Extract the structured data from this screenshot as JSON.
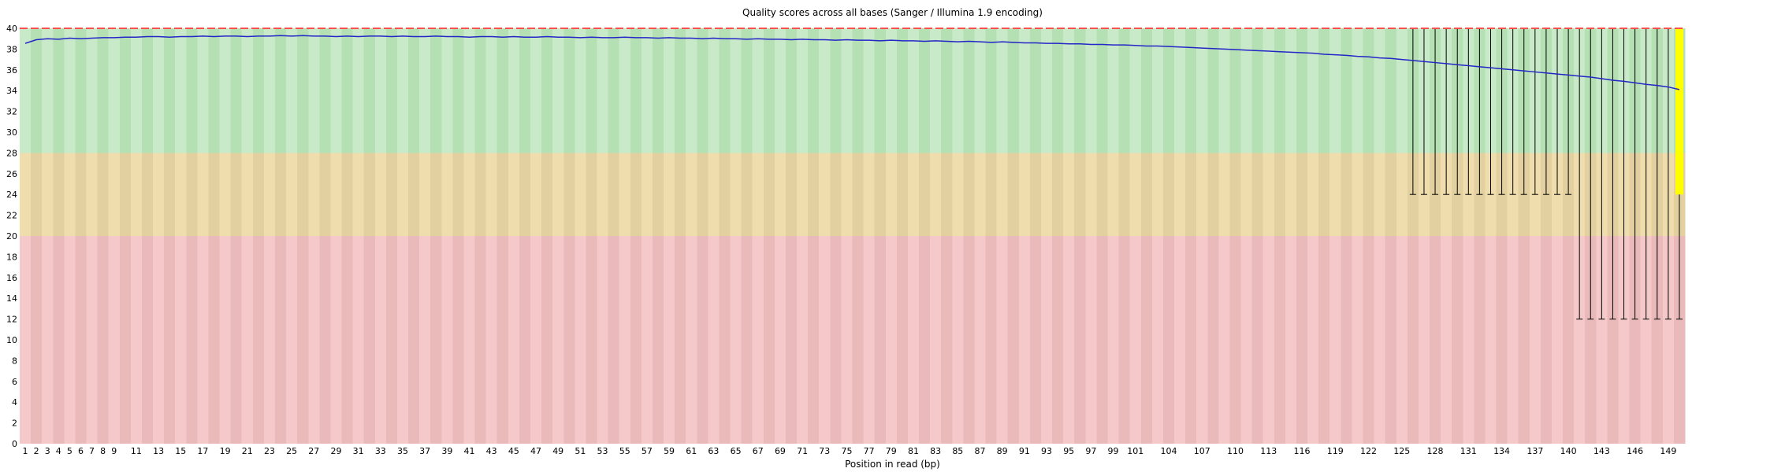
{
  "chart_data": {
    "type": "boxplot-line",
    "title": "Quality scores across all bases (Sanger / Illumina 1.9 encoding)",
    "xlabel": "Position in read (bp)",
    "ylabel": "",
    "ylim": [
      0,
      40
    ],
    "n_positions": 150,
    "y_ticks": [
      0,
      2,
      4,
      6,
      8,
      10,
      12,
      14,
      16,
      18,
      20,
      22,
      24,
      26,
      28,
      30,
      32,
      34,
      36,
      38,
      40
    ],
    "x_tick_labels": [
      "1",
      "2",
      "3",
      "4",
      "5",
      "6",
      "7",
      "8",
      "9",
      "11",
      "13",
      "15",
      "17",
      "19",
      "21",
      "23",
      "25",
      "27",
      "29",
      "31",
      "33",
      "35",
      "37",
      "39",
      "41",
      "43",
      "45",
      "47",
      "49",
      "51",
      "53",
      "55",
      "57",
      "59",
      "61",
      "63",
      "65",
      "67",
      "69",
      "71",
      "73",
      "75",
      "77",
      "79",
      "81",
      "83",
      "85",
      "87",
      "89",
      "91",
      "93",
      "95",
      "97",
      "99",
      "101",
      "104",
      "107",
      "110",
      "113",
      "116",
      "119",
      "122",
      "125",
      "128",
      "131",
      "134",
      "137",
      "140",
      "143",
      "146",
      "149"
    ],
    "bands": [
      {
        "name": "good",
        "from": 28,
        "to": 40,
        "light": "#c8eac8",
        "dark": "#b4e0b4"
      },
      {
        "name": "ok",
        "from": 20,
        "to": 28,
        "light": "#f0ddae",
        "dark": "#e3d0a0"
      },
      {
        "name": "bad",
        "from": 0,
        "to": 20,
        "light": "#f5c9c9",
        "dark": "#eab9b9"
      }
    ],
    "mean_color": "#2525c8",
    "whisker_color": "#000000",
    "median_line": {
      "value": 40,
      "color": "#ff4e4e"
    },
    "box": {
      "position": 150,
      "q_low": 24,
      "q_high": 40,
      "color": "#ffff00"
    },
    "whisker_groups": [
      {
        "start": 126,
        "end": 140,
        "low": 24,
        "high": 40
      },
      {
        "start": 141,
        "end": 150,
        "low": 12,
        "high": 40
      }
    ],
    "mean": [
      38.55,
      38.9,
      39.0,
      38.95,
      39.05,
      39.0,
      39.05,
      39.1,
      39.1,
      39.15,
      39.15,
      39.2,
      39.2,
      39.15,
      39.2,
      39.2,
      39.25,
      39.2,
      39.25,
      39.25,
      39.2,
      39.25,
      39.25,
      39.3,
      39.25,
      39.3,
      39.25,
      39.25,
      39.2,
      39.25,
      39.2,
      39.25,
      39.25,
      39.2,
      39.25,
      39.2,
      39.2,
      39.25,
      39.2,
      39.2,
      39.15,
      39.2,
      39.2,
      39.15,
      39.2,
      39.15,
      39.15,
      39.2,
      39.15,
      39.15,
      39.1,
      39.15,
      39.1,
      39.1,
      39.15,
      39.1,
      39.1,
      39.05,
      39.1,
      39.05,
      39.05,
      39.0,
      39.05,
      39.0,
      39.0,
      38.95,
      39.0,
      38.95,
      38.95,
      38.9,
      38.95,
      38.9,
      38.9,
      38.85,
      38.9,
      38.85,
      38.85,
      38.8,
      38.85,
      38.8,
      38.8,
      38.75,
      38.8,
      38.75,
      38.7,
      38.75,
      38.7,
      38.65,
      38.7,
      38.65,
      38.6,
      38.6,
      38.55,
      38.55,
      38.5,
      38.5,
      38.45,
      38.45,
      38.4,
      38.4,
      38.35,
      38.3,
      38.3,
      38.25,
      38.2,
      38.15,
      38.1,
      38.05,
      38.0,
      37.95,
      37.9,
      37.85,
      37.8,
      37.75,
      37.7,
      37.65,
      37.6,
      37.5,
      37.45,
      37.4,
      37.3,
      37.25,
      37.15,
      37.1,
      37.0,
      36.9,
      36.8,
      36.7,
      36.6,
      36.5,
      36.4,
      36.3,
      36.2,
      36.1,
      36.0,
      35.9,
      35.8,
      35.7,
      35.6,
      35.5,
      35.4,
      35.3,
      35.15,
      35.0,
      34.9,
      34.75,
      34.6,
      34.5,
      34.35,
      34.1
    ]
  }
}
